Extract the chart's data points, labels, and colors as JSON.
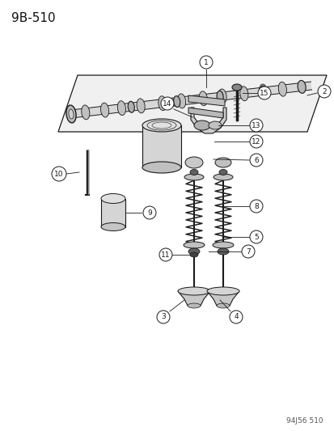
{
  "title": "9B-510",
  "watermark": "94J56 510",
  "bg_color": "#ffffff",
  "lc": "#1a1a1a",
  "title_fontsize": 11,
  "watermark_fontsize": 6.5,
  "figsize": [
    4.14,
    5.33
  ],
  "dpi": 100
}
